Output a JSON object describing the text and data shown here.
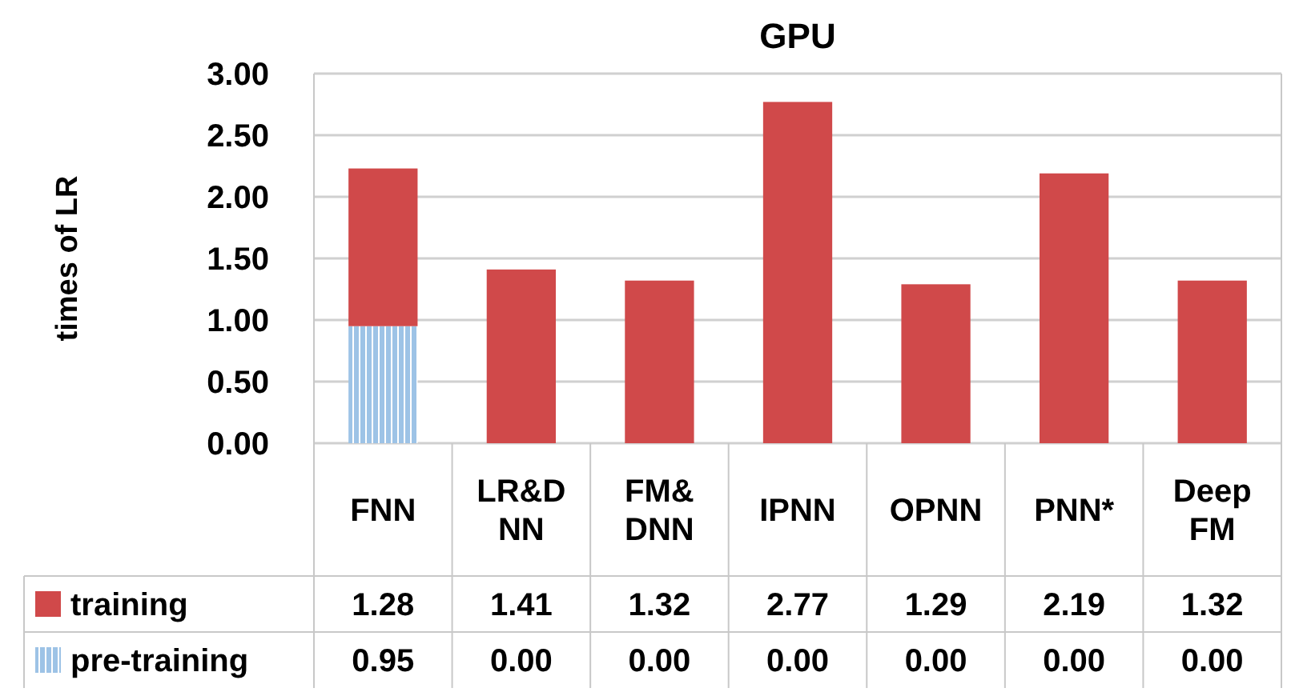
{
  "chart_data": {
    "type": "bar",
    "title": "GPU",
    "ylabel": "times of LR",
    "stacked": true,
    "categories": [
      "FNN",
      "LR&D\nNN",
      "FM&\nDNN",
      "IPNN",
      "OPNN",
      "PNN*",
      "Deep\nFM"
    ],
    "series": [
      {
        "name": "pre-training",
        "color": "#9dc3e6",
        "values": [
          0.95,
          0,
          0,
          0,
          0,
          0,
          0
        ],
        "value_labels": [
          "0.95",
          "0.00",
          "0.00",
          "0.00",
          "0.00",
          "0.00",
          "0.00"
        ]
      },
      {
        "name": "training",
        "color": "#d0494a",
        "values": [
          1.28,
          1.41,
          1.32,
          2.77,
          1.29,
          2.19,
          1.32
        ],
        "value_labels": [
          "1.28",
          "1.41",
          "1.32",
          "2.77",
          "1.29",
          "2.19",
          "1.32"
        ]
      }
    ],
    "ylim": [
      0,
      3
    ],
    "yticks": [
      {
        "value": 0,
        "label": "0.00"
      },
      {
        "value": 0.5,
        "label": "0.50"
      },
      {
        "value": 1,
        "label": "1.00"
      },
      {
        "value": 1.5,
        "label": "1.50"
      },
      {
        "value": 2,
        "label": "2.00"
      },
      {
        "value": 2.5,
        "label": "2.50"
      },
      {
        "value": 3,
        "label": "3.00"
      }
    ],
    "grid": "y",
    "legend": "bottom left"
  }
}
